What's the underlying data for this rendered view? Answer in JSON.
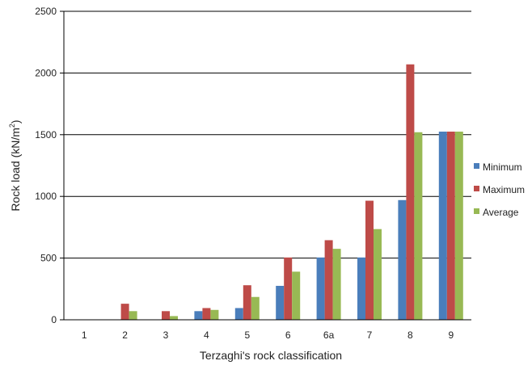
{
  "colors": {
    "Minimum": "#4a7ebb",
    "Maximum": "#be4b48",
    "Average": "#98b954",
    "grid": "#000000"
  },
  "chart_data": {
    "type": "bar",
    "title": "",
    "xlabel": "Terzaghi's rock classification",
    "ylabel_main": "Rock load (kN/m",
    "ylabel_sup": "2",
    "ylabel_close": ")",
    "ylim": [
      0,
      2500
    ],
    "yticks": [
      0,
      500,
      1000,
      1500,
      2000,
      2500
    ],
    "grid": true,
    "legend_position": "right",
    "categories": [
      "1",
      "2",
      "3",
      "4",
      "5",
      "6",
      "6a",
      "7",
      "8",
      "9"
    ],
    "series": [
      {
        "name": "Minimum",
        "values": [
          0,
          0,
          0,
          70,
          95,
          275,
          505,
          505,
          970,
          1525
        ]
      },
      {
        "name": "Maximum",
        "values": [
          0,
          130,
          70,
          95,
          280,
          505,
          645,
          965,
          2070,
          1525
        ]
      },
      {
        "name": "Average",
        "values": [
          0,
          70,
          30,
          80,
          185,
          390,
          575,
          735,
          1520,
          1525
        ]
      }
    ]
  }
}
